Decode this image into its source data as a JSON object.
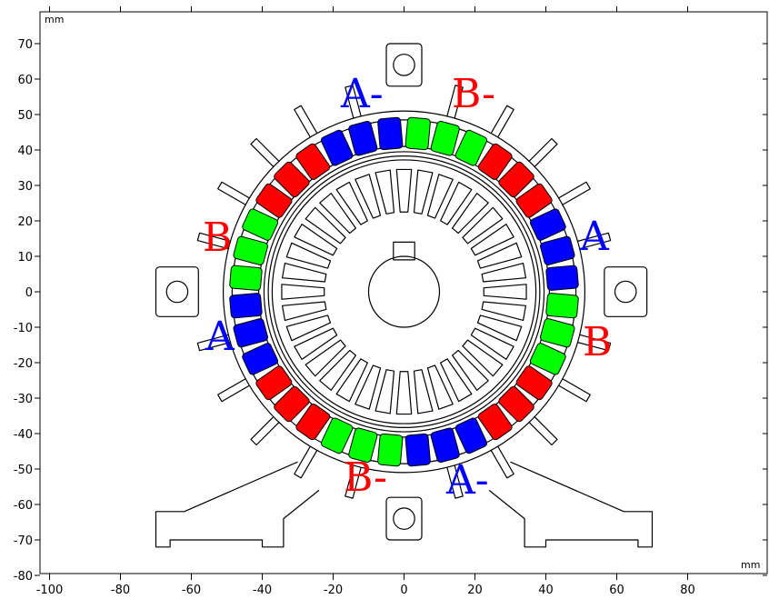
{
  "axes": {
    "x_unit": "mm",
    "y_unit": "mm",
    "x_ticks": [
      "-100",
      "-80",
      "-60",
      "-40",
      "-20",
      "0",
      "20",
      "40",
      "60",
      "80"
    ],
    "y_ticks": [
      "70",
      "60",
      "50",
      "40",
      "30",
      "20",
      "10",
      "0",
      "-10",
      "-20",
      "-30",
      "-40",
      "-50",
      "-60",
      "-70",
      "-80"
    ]
  },
  "phase_labels": [
    {
      "text": "A",
      "suffix": "-",
      "color": "#0000ff"
    },
    {
      "text": "B",
      "suffix": "-",
      "color": "#ff0000"
    },
    {
      "text": "A",
      "suffix": "",
      "color": "#0000ff"
    },
    {
      "text": "B",
      "suffix": "",
      "color": "#ff0000"
    },
    {
      "text": "B",
      "suffix": "",
      "color": "#ff0000"
    },
    {
      "text": "A",
      "suffix": "",
      "color": "#0000ff"
    },
    {
      "text": "B",
      "suffix": "-",
      "color": "#ff0000"
    },
    {
      "text": "A",
      "suffix": "-",
      "color": "#0000ff"
    }
  ],
  "coil_colors": {
    "A": "#0000ff",
    "B": "#ff0000",
    "C": "#00ff00"
  },
  "coil_sequence": [
    "A",
    "A",
    "A",
    "B",
    "B",
    "B",
    "C",
    "C",
    "C",
    "A",
    "A",
    "A",
    "B",
    "B",
    "B",
    "C",
    "C",
    "C",
    "A",
    "A",
    "A",
    "B",
    "B",
    "B",
    "C",
    "C",
    "C",
    "A",
    "A",
    "A",
    "B",
    "B",
    "B",
    "C",
    "C",
    "C"
  ]
}
